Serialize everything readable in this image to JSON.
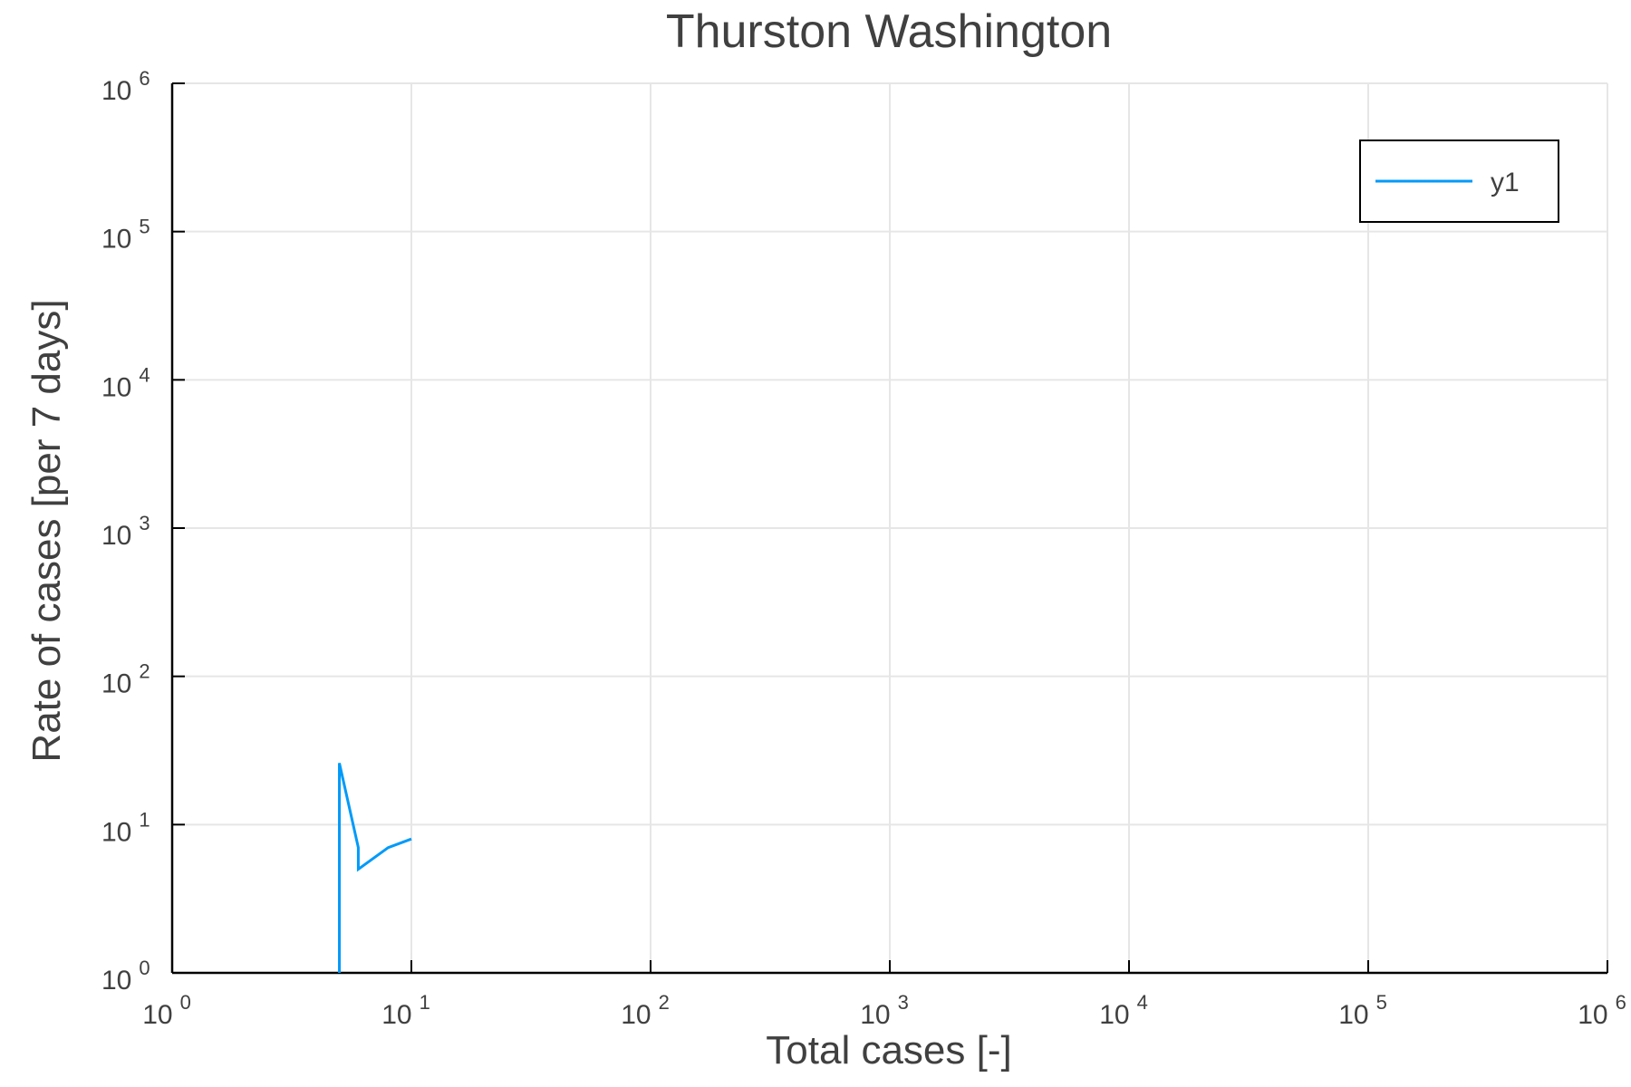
{
  "chart_data": {
    "type": "line",
    "title": "Thurston Washington",
    "xlabel": "Total cases [-]",
    "ylabel": "Rate of cases [per 7 days]",
    "xscale": "log",
    "yscale": "log",
    "xlim": [
      1,
      1000000
    ],
    "ylim": [
      1,
      1000000
    ],
    "grid": true,
    "legend_position": "top-right",
    "x_ticks": [
      {
        "base": "10",
        "exp": "0"
      },
      {
        "base": "10",
        "exp": "1"
      },
      {
        "base": "10",
        "exp": "2"
      },
      {
        "base": "10",
        "exp": "3"
      },
      {
        "base": "10",
        "exp": "4"
      },
      {
        "base": "10",
        "exp": "5"
      },
      {
        "base": "10",
        "exp": "6"
      }
    ],
    "y_ticks": [
      {
        "base": "10",
        "exp": "0"
      },
      {
        "base": "10",
        "exp": "1"
      },
      {
        "base": "10",
        "exp": "2"
      },
      {
        "base": "10",
        "exp": "3"
      },
      {
        "base": "10",
        "exp": "4"
      },
      {
        "base": "10",
        "exp": "5"
      },
      {
        "base": "10",
        "exp": "6"
      }
    ],
    "series": [
      {
        "name": "y1",
        "color": "#009af9",
        "x": [
          5,
          5,
          6,
          6,
          8,
          10
        ],
        "y": [
          1,
          26,
          7,
          5,
          7,
          8
        ]
      }
    ]
  }
}
